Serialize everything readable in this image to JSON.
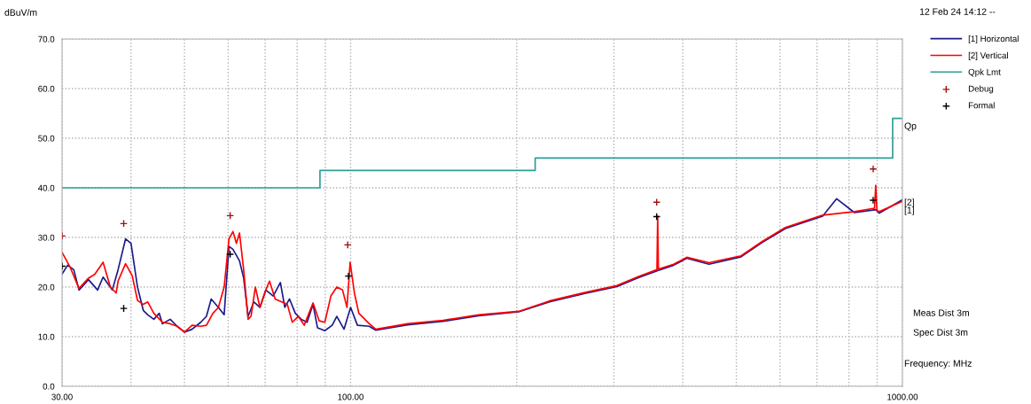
{
  "chart_data": {
    "type": "line",
    "ylabel": "dBuV/m",
    "log": "x",
    "grid": true,
    "legend": "right",
    "line_style": "solid",
    "xlim": [
      30,
      1000
    ],
    "ylim": [
      0,
      70
    ],
    "xticks": [
      {
        "value": 30,
        "label": "30.00"
      },
      {
        "value": 40,
        "label": null
      },
      {
        "value": 50,
        "label": null
      },
      {
        "value": 60,
        "label": null
      },
      {
        "value": 70,
        "label": null
      },
      {
        "value": 80,
        "label": null
      },
      {
        "value": 90,
        "label": null
      },
      {
        "value": 100,
        "label": "100.00"
      },
      {
        "value": 200,
        "label": null
      },
      {
        "value": 300,
        "label": null
      },
      {
        "value": 400,
        "label": null
      },
      {
        "value": 500,
        "label": null
      },
      {
        "value": 600,
        "label": null
      },
      {
        "value": 700,
        "label": null
      },
      {
        "value": 800,
        "label": null
      },
      {
        "value": 900,
        "label": null
      },
      {
        "value": 1000,
        "label": "1000.00"
      }
    ],
    "yticks": [
      {
        "value": 0,
        "label": "0.0"
      },
      {
        "value": 10,
        "label": "10.0"
      },
      {
        "value": 20,
        "label": "20.0"
      },
      {
        "value": 30,
        "label": "30.0"
      },
      {
        "value": 40,
        "label": "40.0"
      },
      {
        "value": 50,
        "label": "50.0"
      },
      {
        "value": 60,
        "label": "60.0"
      },
      {
        "value": 70,
        "label": "70.0"
      }
    ],
    "series": [
      {
        "name": "[1] Horizontal",
        "color": "#1a1a8c",
        "marker": "none",
        "x": [
          30,
          30.7,
          31.5,
          32.2,
          33.5,
          34.8,
          35.6,
          37.0,
          37.9,
          39.1,
          40.0,
          41.1,
          42.1,
          42.9,
          44.0,
          45.0,
          45.6,
          47.1,
          48.5,
          50.0,
          51.6,
          53.5,
          54.8,
          55.9,
          57.6,
          59.0,
          60.2,
          61.2,
          62.9,
          64.0,
          65.2,
          66.8,
          68.5,
          70.2,
          72.4,
          74.6,
          76.0,
          77.5,
          79.4,
          81.4,
          83.4,
          85.5,
          87.1,
          89.8,
          92.6,
          94.4,
          97.3,
          100,
          102.9,
          108.1,
          111.1,
          126.9,
          147.1,
          170.6,
          201.6,
          229.3,
          265.9,
          303.8,
          332.0,
          360.1,
          384.9,
          406.6,
          446.1,
          510.0,
          557.2,
          613.5,
          716.7,
          760,
          818.8,
          894.6,
          908,
          1000
        ],
        "values": [
          22.6,
          24.4,
          23.5,
          19.4,
          21.5,
          19.4,
          22.0,
          19.4,
          23.5,
          29.7,
          28.8,
          20.0,
          15.3,
          14.4,
          13.5,
          14.7,
          12.6,
          13.5,
          12.1,
          10.9,
          11.5,
          12.9,
          14.1,
          17.6,
          15.9,
          14.4,
          28.2,
          27.6,
          25.3,
          21.8,
          14.1,
          17.0,
          15.9,
          19.4,
          18.2,
          20.9,
          15.9,
          17.6,
          14.7,
          13.5,
          12.9,
          16.5,
          11.8,
          11.2,
          12.3,
          14.1,
          11.5,
          15.9,
          12.3,
          12.1,
          11.3,
          12.4,
          13.1,
          14.2,
          15.0,
          17.0,
          18.7,
          20.1,
          21.9,
          23.3,
          24.4,
          25.8,
          24.6,
          26.1,
          29.0,
          31.8,
          34.3,
          37.8,
          35.0,
          35.6,
          34.9,
          37.6
        ]
      },
      {
        "name": "[2] Vertical",
        "color": "#ff0000",
        "marker": "none",
        "x": [
          30,
          31.0,
          32.2,
          33.5,
          34.4,
          35.6,
          36.7,
          37.6,
          37.9,
          39.1,
          40.2,
          41.1,
          42.1,
          42.9,
          44.0,
          45.6,
          47.1,
          48.5,
          50.0,
          51.6,
          53.5,
          54.8,
          56.3,
          57.6,
          59.0,
          60.2,
          61.2,
          62.1,
          62.9,
          64.0,
          65.2,
          66.0,
          67.2,
          68.5,
          70.2,
          71.3,
          73.0,
          75.0,
          76.8,
          78.4,
          80.4,
          82.4,
          85.5,
          87.7,
          89.8,
          92.1,
          94.4,
          96.7,
          98.5,
          99.8,
          101.6,
          103.5,
          108.1,
          111.1,
          126.9,
          147.1,
          170.6,
          201.6,
          229.3,
          265.9,
          303.8,
          332.0,
          359.0,
          360.1,
          361.2,
          384.9,
          406.6,
          446.1,
          510.0,
          557.2,
          613.5,
          716.7,
          818.8,
          890,
          894.6,
          899,
          908,
          1000
        ],
        "values": [
          27.0,
          24.1,
          19.7,
          21.8,
          22.6,
          25.0,
          20.0,
          18.8,
          21.2,
          24.7,
          22.3,
          17.3,
          16.5,
          17.0,
          14.7,
          12.9,
          12.6,
          12.1,
          10.9,
          12.3,
          12.1,
          12.3,
          14.7,
          15.9,
          20.0,
          29.7,
          31.2,
          28.8,
          30.9,
          23.5,
          13.5,
          14.1,
          20.0,
          15.9,
          19.4,
          21.2,
          17.6,
          17.0,
          16.5,
          12.9,
          14.1,
          12.3,
          16.8,
          13.2,
          12.9,
          18.2,
          20.0,
          19.4,
          15.9,
          25.0,
          18.8,
          14.7,
          12.6,
          11.5,
          12.6,
          13.3,
          14.4,
          15.1,
          17.2,
          18.9,
          20.3,
          22.1,
          23.5,
          34.3,
          23.6,
          24.6,
          26.0,
          24.9,
          26.3,
          29.2,
          32.0,
          34.5,
          35.2,
          35.9,
          40.5,
          35.4,
          35.2,
          37.3
        ]
      },
      {
        "name": "Qpk Lmt",
        "color": "#2e9e96",
        "marker": "none",
        "x": [
          30,
          88,
          88,
          216,
          216,
          960,
          960,
          1000
        ],
        "values": [
          40,
          40,
          43.5,
          43.5,
          46,
          46,
          54,
          54
        ]
      },
      {
        "name": "Debug",
        "color": "#a01010",
        "type": "scatter",
        "marker": "cross",
        "x": [
          30,
          38.8,
          60.5,
          98.8,
          358.6,
          885
        ],
        "values": [
          30.3,
          32.8,
          34.4,
          28.5,
          37.1,
          43.8
        ]
      },
      {
        "name": "Formal",
        "color": "#000000",
        "type": "scatter",
        "marker": "cross",
        "x": [
          30,
          38.8,
          60.5,
          99.1,
          358.6,
          885
        ],
        "values": [
          24.2,
          15.7,
          26.6,
          22.2,
          34.2,
          37.5
        ]
      }
    ],
    "annotations": [
      "Qp",
      "[2]",
      "[1]",
      "12 Feb 24 14:12 --",
      "Meas Dist 3m",
      "Spec Dist 3m",
      "Frequency: MHz"
    ]
  }
}
